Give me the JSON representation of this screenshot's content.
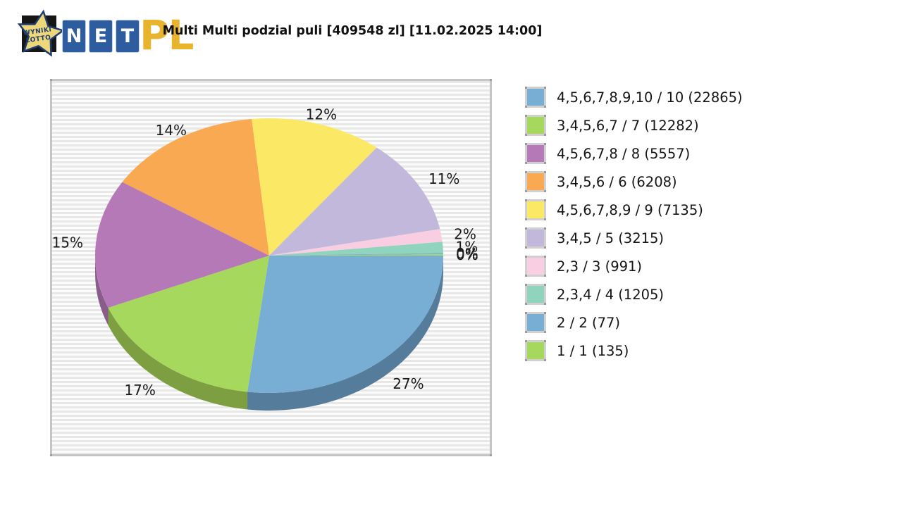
{
  "header": {
    "title": "Multi Multi podzial puli [409548 zl] [11.02.2025 14:00]"
  },
  "logo": {
    "star_text_line1": "WYNIKI",
    "star_text_line2": "LOTTO",
    "tile_letters": [
      "N",
      "E",
      "T"
    ],
    "suffix_text": "PL",
    "colors": {
      "tile_bg": "#2d5d9e",
      "suffix_gold": "#e9b42d",
      "star_fill": "#ecd87a",
      "star_stroke": "#1e3c6e",
      "black_box": "#161616"
    }
  },
  "chart_data": {
    "type": "pie",
    "style": "3d",
    "title": "Multi Multi podzial puli [409548 zl] [11.02.2025 14:00]",
    "legend_position": "right",
    "slices": [
      {
        "label": "4,5,6,7,8,9,10 / 10",
        "count": 22865,
        "percent_label": "27%",
        "percent": 27.0,
        "color": "#79aed4",
        "side_color": "#567c9b"
      },
      {
        "label": "3,4,5,6,7 / 7",
        "count": 12282,
        "percent_label": "17%",
        "percent": 16.8,
        "color": "#a7d85e",
        "side_color": "#7d9f41"
      },
      {
        "label": "4,5,6,7,8 / 8",
        "count": 5557,
        "percent_label": "15%",
        "percent": 15.2,
        "color": "#b679b7",
        "side_color": "#8a5c8b"
      },
      {
        "label": "3,4,5,6 / 6",
        "count": 6208,
        "percent_label": "14%",
        "percent": 14.4,
        "color": "#faa953",
        "side_color": "#c17c34"
      },
      {
        "label": "4,5,6,7,8,9 / 9",
        "count": 7135,
        "percent_label": "12%",
        "percent": 12.2,
        "color": "#fbe865",
        "side_color": "#c4b244"
      },
      {
        "label": "3,4,5 / 5",
        "count": 3215,
        "percent_label": "11%",
        "percent": 11.3,
        "color": "#c2b8db",
        "side_color": "#948cb0"
      },
      {
        "label": "2,3 / 3",
        "count": 991,
        "percent_label": "2%",
        "percent": 1.5,
        "color": "#f9cee3",
        "side_color": "#c49eb4"
      },
      {
        "label": "2,3,4 / 4",
        "count": 1205,
        "percent_label": "1%",
        "percent": 1.3,
        "color": "#90d4be",
        "side_color": "#69a691"
      },
      {
        "label": "2 / 2",
        "count": 77,
        "percent_label": "0%",
        "percent": 0.15,
        "color": "#79aed4",
        "side_color": "#567c9b"
      },
      {
        "label": "1 / 1",
        "count": 135,
        "percent_label": "0%",
        "percent": 0.15,
        "color": "#a7d85e",
        "side_color": "#7d9f41"
      }
    ]
  }
}
